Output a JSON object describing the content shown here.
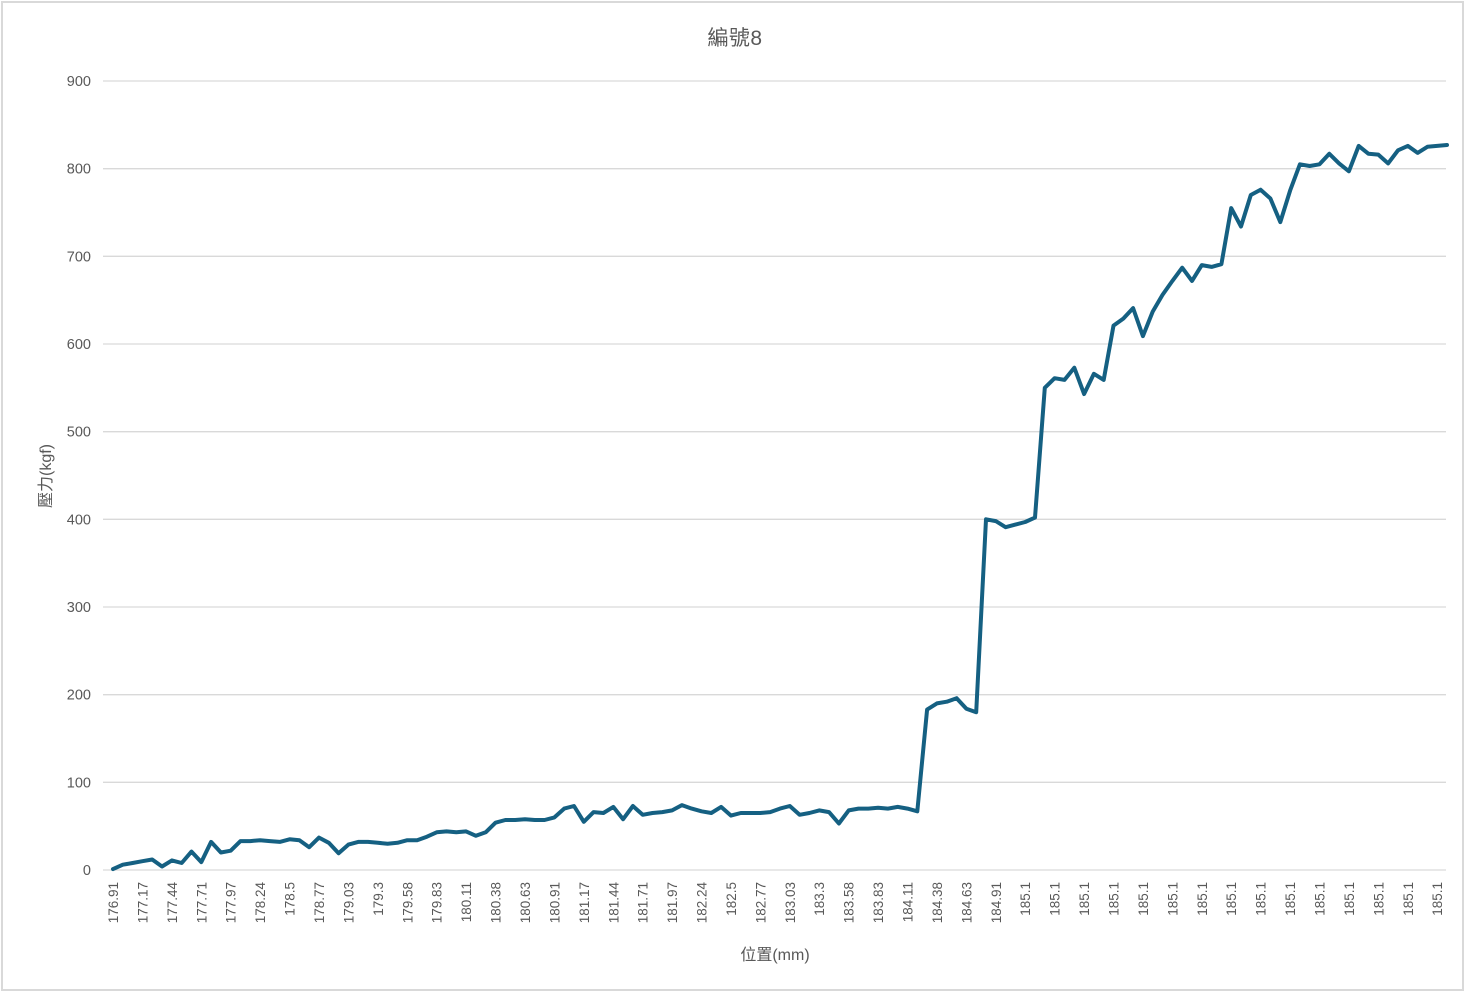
{
  "chart_data": {
    "type": "line",
    "title": "編號8",
    "xlabel": "位置(mm)",
    "ylabel": "壓力(kgf)",
    "ylim": [
      0,
      900
    ],
    "ytick_step": 100,
    "grid": "horizontal",
    "legend": "none",
    "y_tick_labels": [
      "0",
      "100",
      "200",
      "300",
      "400",
      "500",
      "600",
      "700",
      "800",
      "900"
    ],
    "x_tick_labels": [
      "176.91",
      "177.17",
      "177.44",
      "177.71",
      "177.97",
      "178.24",
      "178.5",
      "178.77",
      "179.03",
      "179.3",
      "179.58",
      "179.83",
      "180.11",
      "180.38",
      "180.63",
      "180.91",
      "181.17",
      "181.44",
      "181.71",
      "181.97",
      "182.24",
      "182.5",
      "182.77",
      "183.03",
      "183.3",
      "183.58",
      "183.83",
      "184.11",
      "184.38",
      "184.63",
      "184.91",
      "185.1",
      "185.1",
      "185.1",
      "185.1",
      "185.1",
      "185.1",
      "185.1",
      "185.1",
      "185.1",
      "185.1",
      "185.1",
      "185.1",
      "185.1",
      "185.1",
      "185.1"
    ],
    "points_per_x_tick": 3,
    "series": [
      {
        "name": "編號8",
        "values": [
          1,
          6,
          8,
          10,
          12,
          4,
          11,
          8,
          21,
          9,
          32,
          20,
          22,
          33,
          33,
          34,
          33,
          32,
          35,
          34,
          26,
          37,
          31,
          19,
          29,
          32,
          32,
          31,
          30,
          31,
          34,
          34,
          38,
          43,
          44,
          43,
          44,
          39,
          43,
          54,
          57,
          57,
          58,
          57,
          57,
          60,
          70,
          73,
          55,
          66,
          65,
          72,
          58,
          73,
          63,
          65,
          66,
          68,
          74,
          70,
          67,
          65,
          72,
          62,
          65,
          65,
          65,
          66,
          70,
          73,
          63,
          65,
          68,
          66,
          53,
          68,
          70,
          70,
          71,
          70,
          72,
          70,
          67,
          183,
          190,
          192,
          196,
          184,
          180,
          400,
          398,
          391,
          394,
          397,
          402,
          550,
          561,
          559,
          573,
          543,
          566,
          559,
          621,
          629,
          641,
          609,
          637,
          656,
          672,
          687,
          672,
          690,
          688,
          691,
          755,
          734,
          770,
          776,
          766,
          739,
          775,
          805,
          803,
          805,
          817,
          806,
          797,
          826,
          817,
          816,
          806,
          821,
          826,
          818,
          825,
          826,
          827
        ]
      }
    ],
    "colors": {
      "line": "#156082",
      "grid": "#d9d9d9",
      "text": "#595959",
      "frame": "#d9d9d9",
      "background": "#ffffff"
    }
  }
}
